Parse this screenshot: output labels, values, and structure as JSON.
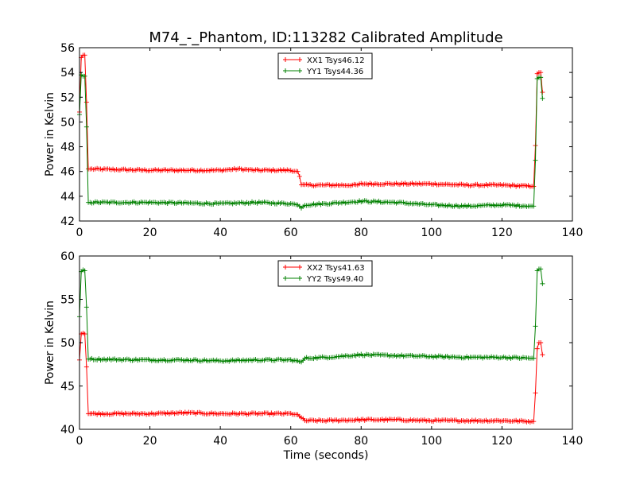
{
  "figure": {
    "title": "M74_-_Phantom, ID:113282 Calibrated Amplitude",
    "xlabel": "Time (seconds)"
  },
  "chart_data": [
    {
      "type": "line",
      "title": "M74_-_Phantom, ID:113282 Calibrated Amplitude",
      "xlabel": "",
      "ylabel": "Power in Kelvin",
      "xlim": [
        0,
        140
      ],
      "ylim": [
        42,
        56
      ],
      "xticks": [
        0,
        20,
        40,
        60,
        80,
        100,
        120,
        140
      ],
      "yticks": [
        42,
        44,
        46,
        48,
        50,
        52,
        54,
        56
      ],
      "grid": false,
      "legend": "top-center",
      "series": [
        {
          "name": "XX1 Tsys46.12",
          "color": "#ff0000",
          "segments": [
            {
              "x": [
                0,
                0.5,
                1.0,
                1.5,
                2.0,
                2.5
              ],
              "y": [
                50.8,
                55.2,
                55.4,
                55.4,
                51.6,
                46.2
              ]
            },
            {
              "x": [
                2.5,
                20,
                40,
                45,
                50,
                60,
                62.0
              ],
              "y": [
                46.2,
                46.1,
                46.1,
                46.2,
                46.1,
                46.1,
                46.0
              ]
            },
            {
              "x": [
                62.0,
                62.5,
                63.0,
                64.0,
                70,
                79,
                80,
                90,
                100,
                110,
                120,
                129.0
              ],
              "y": [
                46.0,
                45.6,
                44.9,
                44.9,
                44.9,
                44.9,
                45.0,
                45.0,
                45.0,
                44.9,
                44.9,
                44.8
              ]
            },
            {
              "x": [
                129.0,
                129.5,
                130.0,
                130.5,
                131.0,
                131.5
              ],
              "y": [
                44.8,
                48.1,
                53.9,
                54.0,
                54.0,
                52.4
              ]
            }
          ],
          "jitter": 0.07
        },
        {
          "name": "YY1 Tsys44.36",
          "color": "#008000",
          "segments": [
            {
              "x": [
                0,
                0.5,
                1.0,
                1.5,
                2.0,
                2.5
              ],
              "y": [
                50.6,
                53.8,
                53.7,
                53.7,
                49.6,
                43.5
              ]
            },
            {
              "x": [
                2.5,
                20,
                40,
                50,
                60,
                62.0
              ],
              "y": [
                43.5,
                43.5,
                43.4,
                43.5,
                43.4,
                43.3
              ]
            },
            {
              "x": [
                62.0,
                63.0,
                64.0,
                70,
                80,
                90,
                100,
                110,
                120,
                129.0
              ],
              "y": [
                43.3,
                43.1,
                43.3,
                43.4,
                43.6,
                43.5,
                43.3,
                43.2,
                43.3,
                43.2
              ]
            },
            {
              "x": [
                129.0,
                129.5,
                130.0,
                130.5,
                131.0,
                131.5
              ],
              "y": [
                43.2,
                46.9,
                53.5,
                53.6,
                53.6,
                51.9
              ]
            }
          ],
          "jitter": 0.07
        }
      ]
    },
    {
      "type": "line",
      "title": "",
      "xlabel": "Time (seconds)",
      "ylabel": "Power in Kelvin",
      "xlim": [
        0,
        140
      ],
      "ylim": [
        40,
        60
      ],
      "xticks": [
        0,
        20,
        40,
        60,
        80,
        100,
        120,
        140
      ],
      "yticks": [
        40,
        45,
        50,
        55,
        60
      ],
      "grid": false,
      "legend": "top-center",
      "series": [
        {
          "name": "XX2 Tsys41.63",
          "color": "#ff0000",
          "segments": [
            {
              "x": [
                0,
                0.5,
                1.0,
                1.5,
                2.0,
                2.5
              ],
              "y": [
                48.0,
                51.0,
                51.1,
                51.0,
                47.2,
                41.8
              ]
            },
            {
              "x": [
                2.5,
                20,
                30,
                40,
                50,
                60,
                62.0
              ],
              "y": [
                41.8,
                41.8,
                41.9,
                41.8,
                41.8,
                41.8,
                41.7
              ]
            },
            {
              "x": [
                62.0,
                63.0,
                64.0,
                70,
                80,
                90,
                100,
                110,
                120,
                129.0
              ],
              "y": [
                41.7,
                41.3,
                41.0,
                41.0,
                41.1,
                41.1,
                41.0,
                41.0,
                41.0,
                40.9
              ]
            },
            {
              "x": [
                129.0,
                129.5,
                130.0,
                130.5,
                131.0,
                131.5
              ],
              "y": [
                40.9,
                44.2,
                49.3,
                50.0,
                50.0,
                48.6
              ]
            }
          ],
          "jitter": 0.1
        },
        {
          "name": "YY2 Tsys49.40",
          "color": "#008000",
          "segments": [
            {
              "x": [
                0,
                0.5,
                1.0,
                1.5,
                2.0,
                2.5
              ],
              "y": [
                53.0,
                58.2,
                58.4,
                58.3,
                54.1,
                48.1
              ]
            },
            {
              "x": [
                2.5,
                20,
                30,
                40,
                50,
                60,
                62.0
              ],
              "y": [
                48.1,
                48.0,
                48.0,
                47.9,
                48.0,
                48.0,
                47.9
              ]
            },
            {
              "x": [
                62.0,
                63.0,
                64.0,
                70,
                80,
                90,
                100,
                110,
                120,
                129.0
              ],
              "y": [
                47.9,
                47.7,
                48.2,
                48.3,
                48.6,
                48.5,
                48.4,
                48.3,
                48.3,
                48.2
              ]
            },
            {
              "x": [
                129.0,
                129.5,
                130.0,
                130.5,
                131.0,
                131.5
              ],
              "y": [
                48.2,
                51.9,
                58.3,
                58.5,
                58.5,
                56.8
              ]
            }
          ],
          "jitter": 0.1
        }
      ]
    }
  ]
}
